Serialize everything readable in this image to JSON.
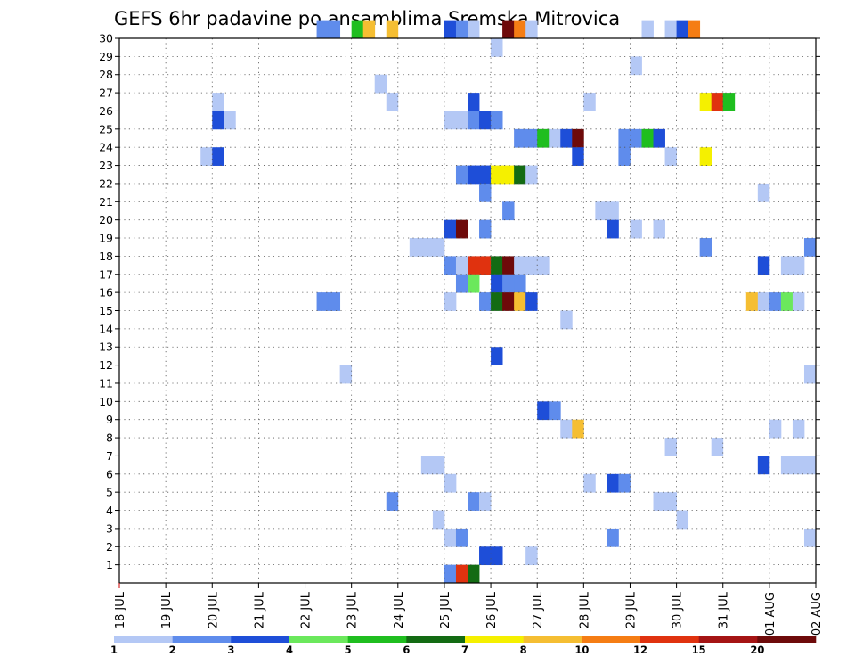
{
  "chart_data": {
    "type": "heatmap",
    "title": "GEFS 6hr padavine po ansamblima Sremska Mitrovica",
    "xlabel": "",
    "ylabel": "",
    "x_tick_labels": [
      "18 JUL",
      "19 JUL",
      "20 JUL",
      "21 JUL",
      "22 JUL",
      "23 JUL",
      "24 JUL",
      "25 JUL",
      "26 JUL",
      "27 JUL",
      "28 JUL",
      "29 JUL",
      "30 JUL",
      "31 JUL",
      "01 AUG",
      "02 AUG"
    ],
    "y_tick_labels": [
      "1",
      "2",
      "3",
      "4",
      "5",
      "6",
      "7",
      "8",
      "9",
      "10",
      "11",
      "12",
      "13",
      "14",
      "15",
      "16",
      "17",
      "18",
      "19",
      "20",
      "21",
      "22",
      "23",
      "24",
      "25",
      "26",
      "27",
      "28",
      "29",
      "30"
    ],
    "xlim": [
      0,
      60
    ],
    "ylim": [
      0,
      30
    ],
    "grid": true,
    "legend": {
      "placement": "bottom",
      "bounds": [
        "1",
        "2",
        "3",
        "4",
        "5",
        "6",
        "7",
        "8",
        "10",
        "12",
        "15",
        "20"
      ],
      "colors": [
        "#b4c8f5",
        "#5f8cec",
        "#1e4ed8",
        "#6be85c",
        "#1fbe1f",
        "#136b13",
        "#f5f000",
        "#f5be32",
        "#f57d14",
        "#e0320f",
        "#a51414",
        "#6e0a0a"
      ]
    },
    "cells": [
      [
        17,
        30,
        1
      ],
      [
        18,
        30,
        1
      ],
      [
        20,
        30,
        4
      ],
      [
        21,
        30,
        7
      ],
      [
        23,
        30,
        7
      ],
      [
        28,
        30,
        2
      ],
      [
        29,
        30,
        1
      ],
      [
        30,
        30,
        0
      ],
      [
        33,
        30,
        11
      ],
      [
        34,
        30,
        8
      ],
      [
        35,
        30,
        0
      ],
      [
        45,
        30,
        0
      ],
      [
        47,
        30,
        0
      ],
      [
        48,
        30,
        2
      ],
      [
        49,
        30,
        8
      ],
      [
        32,
        29,
        0
      ],
      [
        44,
        28,
        0
      ],
      [
        22,
        27,
        0
      ],
      [
        8,
        26,
        0
      ],
      [
        23,
        26,
        0
      ],
      [
        30,
        26,
        2
      ],
      [
        40,
        26,
        0
      ],
      [
        50,
        26,
        6
      ],
      [
        51,
        26,
        9
      ],
      [
        52,
        26,
        4
      ],
      [
        8,
        25,
        2
      ],
      [
        9,
        25,
        0
      ],
      [
        28,
        25,
        0
      ],
      [
        29,
        25,
        0
      ],
      [
        30,
        25,
        1
      ],
      [
        31,
        25,
        2
      ],
      [
        32,
        25,
        1
      ],
      [
        34,
        24,
        1
      ],
      [
        35,
        24,
        1
      ],
      [
        36,
        24,
        4
      ],
      [
        37,
        24,
        0
      ],
      [
        38,
        24,
        2
      ],
      [
        39,
        24,
        11
      ],
      [
        43,
        24,
        1
      ],
      [
        44,
        24,
        1
      ],
      [
        45,
        24,
        4
      ],
      [
        46,
        24,
        2
      ],
      [
        7,
        23,
        0
      ],
      [
        8,
        23,
        2
      ],
      [
        39,
        23,
        2
      ],
      [
        43,
        23,
        1
      ],
      [
        47,
        23,
        0
      ],
      [
        50,
        23,
        6
      ],
      [
        29,
        22,
        1
      ],
      [
        30,
        22,
        2
      ],
      [
        31,
        22,
        2
      ],
      [
        32,
        22,
        6
      ],
      [
        33,
        22,
        6
      ],
      [
        34,
        22,
        5
      ],
      [
        35,
        22,
        0
      ],
      [
        31,
        21,
        1
      ],
      [
        55,
        21,
        0
      ],
      [
        33,
        20,
        1
      ],
      [
        41,
        20,
        0
      ],
      [
        42,
        20,
        0
      ],
      [
        28,
        19,
        2
      ],
      [
        29,
        19,
        11
      ],
      [
        31,
        19,
        1
      ],
      [
        42,
        19,
        2
      ],
      [
        44,
        19,
        0
      ],
      [
        46,
        19,
        0
      ],
      [
        25,
        18,
        0
      ],
      [
        26,
        18,
        0
      ],
      [
        27,
        18,
        0
      ],
      [
        50,
        18,
        1
      ],
      [
        59,
        18,
        1
      ],
      [
        28,
        17,
        1
      ],
      [
        29,
        17,
        0
      ],
      [
        30,
        17,
        9
      ],
      [
        31,
        17,
        9
      ],
      [
        32,
        17,
        5
      ],
      [
        33,
        17,
        11
      ],
      [
        34,
        17,
        0
      ],
      [
        35,
        17,
        0
      ],
      [
        36,
        17,
        0
      ],
      [
        55,
        17,
        2
      ],
      [
        57,
        17,
        0
      ],
      [
        58,
        17,
        0
      ],
      [
        29,
        16,
        1
      ],
      [
        30,
        16,
        3
      ],
      [
        32,
        16,
        2
      ],
      [
        33,
        16,
        1
      ],
      [
        34,
        16,
        1
      ],
      [
        17,
        15,
        1
      ],
      [
        18,
        15,
        1
      ],
      [
        28,
        15,
        0
      ],
      [
        31,
        15,
        1
      ],
      [
        32,
        15,
        5
      ],
      [
        33,
        15,
        11
      ],
      [
        34,
        15,
        7
      ],
      [
        35,
        15,
        2
      ],
      [
        54,
        15,
        7
      ],
      [
        55,
        15,
        0
      ],
      [
        56,
        15,
        1
      ],
      [
        57,
        15,
        3
      ],
      [
        58,
        15,
        0
      ],
      [
        38,
        14,
        0
      ],
      [
        32,
        12,
        2
      ],
      [
        19,
        11,
        0
      ],
      [
        59,
        11,
        0
      ],
      [
        36,
        9,
        2
      ],
      [
        37,
        9,
        1
      ],
      [
        38,
        8,
        0
      ],
      [
        39,
        8,
        7
      ],
      [
        56,
        8,
        0
      ],
      [
        58,
        8,
        0
      ],
      [
        47,
        7,
        0
      ],
      [
        51,
        7,
        0
      ],
      [
        26,
        6,
        0
      ],
      [
        27,
        6,
        0
      ],
      [
        55,
        6,
        2
      ],
      [
        57,
        6,
        0
      ],
      [
        58,
        6,
        0
      ],
      [
        59,
        6,
        0
      ],
      [
        28,
        5,
        0
      ],
      [
        40,
        5,
        0
      ],
      [
        42,
        5,
        2
      ],
      [
        43,
        5,
        1
      ],
      [
        23,
        4,
        1
      ],
      [
        30,
        4,
        1
      ],
      [
        31,
        4,
        0
      ],
      [
        46,
        4,
        0
      ],
      [
        47,
        4,
        0
      ],
      [
        27,
        3,
        0
      ],
      [
        48,
        3,
        0
      ],
      [
        28,
        2,
        0
      ],
      [
        29,
        2,
        1
      ],
      [
        42,
        2,
        1
      ],
      [
        59,
        2,
        0
      ],
      [
        31,
        1,
        2
      ],
      [
        32,
        1,
        2
      ],
      [
        35,
        1,
        0
      ],
      [
        28,
        0,
        1
      ],
      [
        29,
        0,
        9
      ],
      [
        30,
        0,
        5
      ]
    ]
  }
}
